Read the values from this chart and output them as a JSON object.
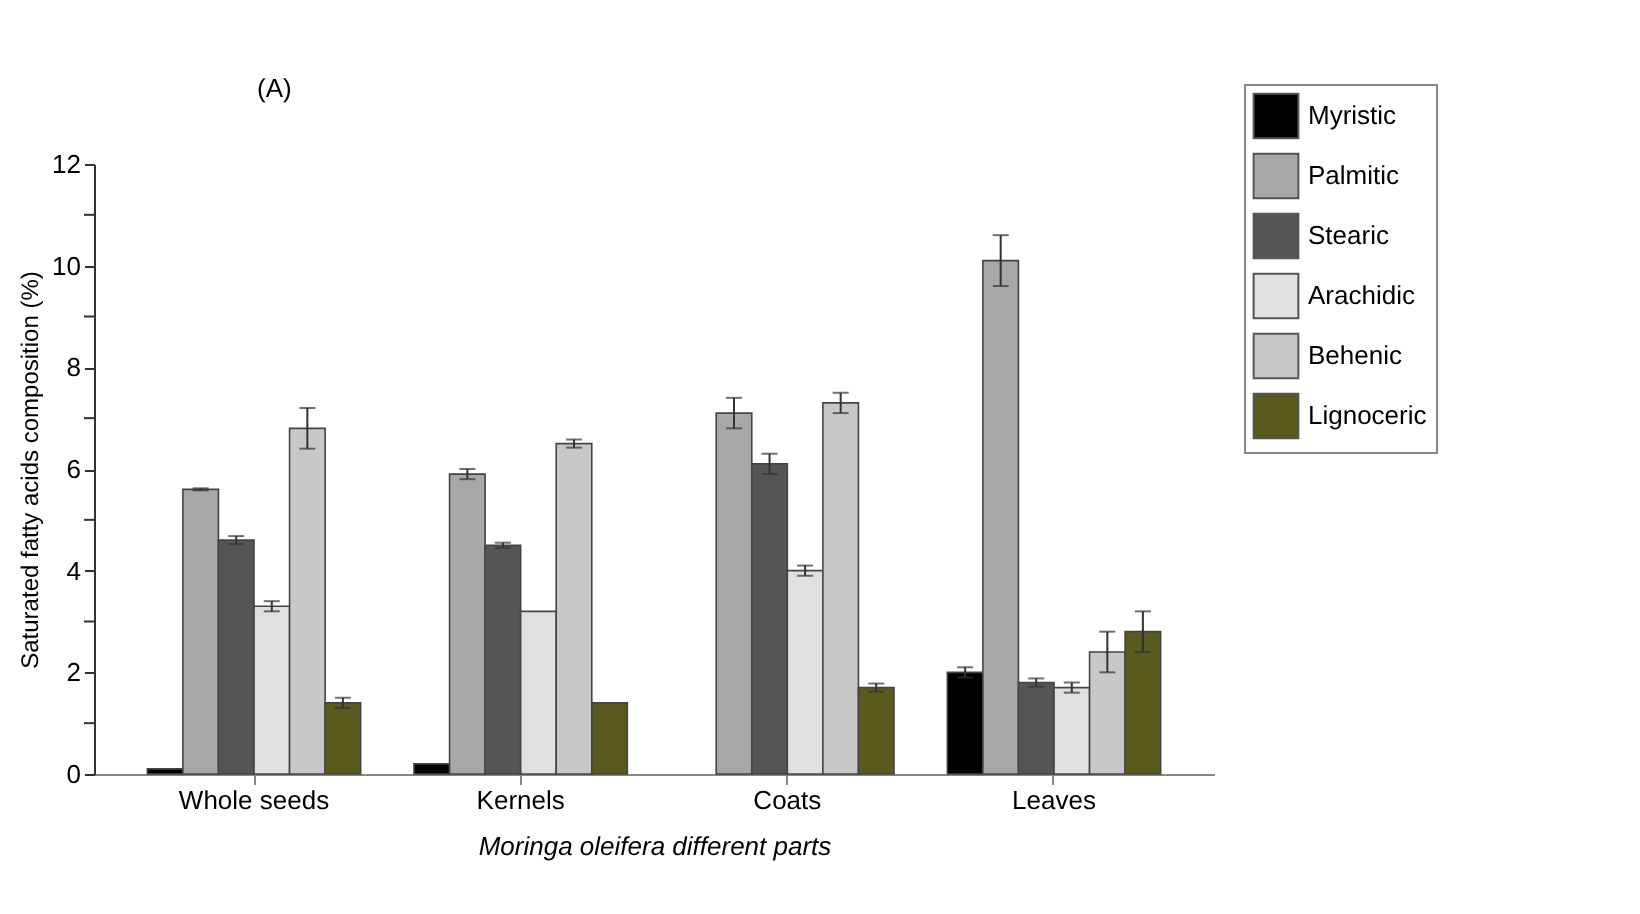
{
  "chart_data": {
    "type": "bar",
    "title": "(A)",
    "xlabel": "Moringa oleifera different parts",
    "ylabel": "Saturated fatty acids composition (%)",
    "categories": [
      "Whole seeds",
      "Kernels",
      "Coats",
      "Leaves"
    ],
    "series": [
      {
        "name": "Myristic",
        "color": "#000000",
        "values": [
          0.1,
          0.2,
          null,
          2.0
        ],
        "errors": [
          null,
          null,
          null,
          0.1
        ]
      },
      {
        "name": "Palmitic",
        "color": "#a8a8a8",
        "values": [
          5.6,
          5.9,
          7.1,
          10.1
        ],
        "errors": [
          0.02,
          0.1,
          0.3,
          0.5
        ]
      },
      {
        "name": "Stearic",
        "color": "#555555",
        "values": [
          4.6,
          4.5,
          6.1,
          1.8
        ],
        "errors": [
          0.08,
          0.05,
          0.2,
          0.08
        ]
      },
      {
        "name": "Arachidic",
        "color": "#e0e0e0",
        "values": [
          3.3,
          3.2,
          4.0,
          1.7
        ],
        "errors": [
          0.1,
          null,
          0.1,
          0.1
        ]
      },
      {
        "name": "Behenic",
        "color": "#c8c8c8",
        "values": [
          6.8,
          6.5,
          7.3,
          2.4
        ],
        "errors": [
          0.4,
          0.08,
          0.2,
          0.4
        ]
      },
      {
        "name": "Lignoceric",
        "color": "#5a5a1e",
        "values": [
          1.4,
          1.4,
          1.7,
          2.8
        ],
        "errors": [
          0.1,
          null,
          0.08,
          0.4
        ]
      }
    ],
    "ylim": [
      0,
      12
    ],
    "yticks": [
      0,
      {
        "value": 1,
        "label": null
      },
      2,
      {
        "value": 3,
        "label": null
      },
      4,
      {
        "value": 5,
        "label": null
      },
      6,
      {
        "value": 7,
        "label": null
      },
      8,
      {
        "value": 9,
        "label": null
      },
      10,
      {
        "value": 11,
        "label": null
      },
      12
    ],
    "grid": false,
    "legend": "top right"
  }
}
